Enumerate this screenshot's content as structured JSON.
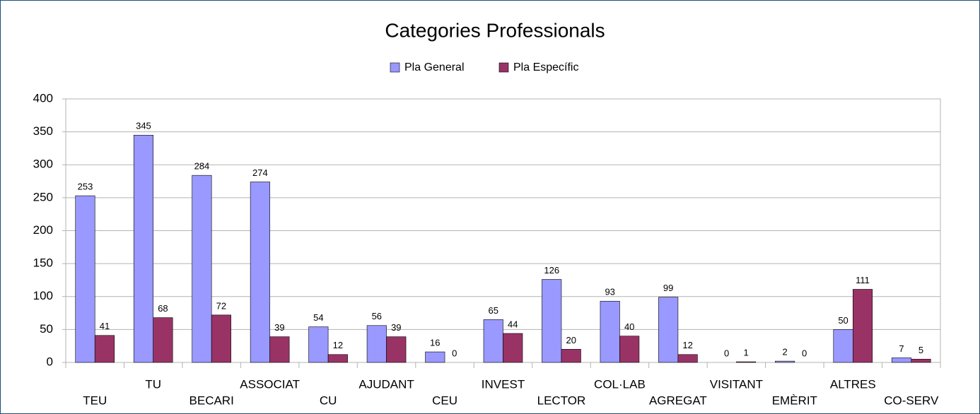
{
  "chart_data": {
    "type": "bar",
    "title": "Categories Professionals",
    "categories": [
      "TEU",
      "TU",
      "BECARI",
      "ASSOCIAT",
      "CU",
      "AJUDANT",
      "CEU",
      "INVEST",
      "LECTOR",
      "COL·LAB",
      "AGREGAT",
      "VISITANT",
      "EMÈRIT",
      "ALTRES",
      "CO-SERV"
    ],
    "series": [
      {
        "name": "Pla General",
        "color": "#9999ff",
        "values": [
          253,
          345,
          284,
          274,
          54,
          56,
          16,
          65,
          126,
          93,
          99,
          0,
          2,
          50,
          7
        ]
      },
      {
        "name": "Pla Específic",
        "color": "#993366",
        "values": [
          41,
          68,
          72,
          39,
          12,
          39,
          0,
          44,
          20,
          40,
          12,
          1,
          0,
          111,
          5
        ]
      }
    ],
    "ylim": [
      0,
      400
    ],
    "yticks": [
      0,
      50,
      100,
      150,
      200,
      250,
      300,
      350,
      400
    ],
    "grid": true,
    "legend": "top"
  }
}
